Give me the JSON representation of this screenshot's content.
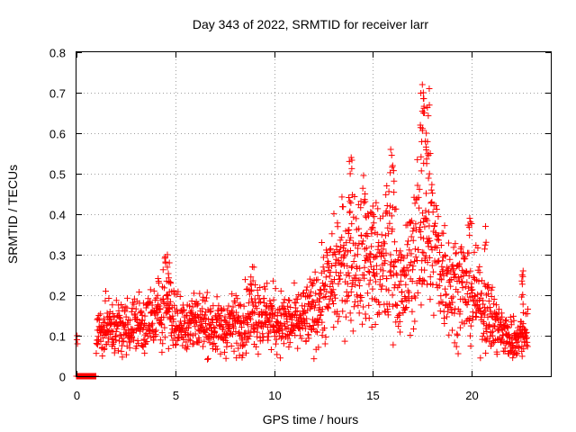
{
  "chart_data": {
    "type": "scatter",
    "title": "Day 343 of 2022, SRMTID for receiver larr",
    "xlabel": "GPS time / hours",
    "ylabel": "SRMTID / TECUs",
    "xlim": [
      0,
      24
    ],
    "ylim": [
      0,
      0.8
    ],
    "xticks": [
      0,
      5,
      10,
      15,
      20
    ],
    "yticks": [
      0,
      0.1,
      0.2,
      0.3,
      0.4,
      0.5,
      0.6,
      0.7,
      0.8
    ],
    "xtick_labels": [
      "0",
      "5",
      "10",
      "15",
      "20"
    ],
    "ytick_labels": [
      "0",
      "0.1",
      "0.2",
      "0.3",
      "0.4",
      "0.5",
      "0.6",
      "0.7",
      "0.8"
    ],
    "grid": true,
    "marker": "+",
    "color": "#ff0000",
    "series": [
      {
        "name": "SRMTID",
        "trend": [
          [
            0.0,
            0.0
          ],
          [
            0.05,
            0.09
          ],
          [
            0.1,
            0.0
          ],
          [
            0.5,
            0.0
          ],
          [
            1.0,
            0.0
          ],
          [
            1.0,
            0.11
          ],
          [
            1.5,
            0.12
          ],
          [
            2.0,
            0.12
          ],
          [
            2.5,
            0.12
          ],
          [
            3.0,
            0.13
          ],
          [
            3.5,
            0.13
          ],
          [
            4.0,
            0.14
          ],
          [
            4.5,
            0.2
          ],
          [
            5.0,
            0.13
          ],
          [
            5.5,
            0.13
          ],
          [
            6.0,
            0.14
          ],
          [
            6.5,
            0.13
          ],
          [
            7.0,
            0.12
          ],
          [
            7.5,
            0.12
          ],
          [
            8.0,
            0.13
          ],
          [
            8.5,
            0.14
          ],
          [
            9.0,
            0.17
          ],
          [
            9.5,
            0.15
          ],
          [
            10.0,
            0.14
          ],
          [
            10.5,
            0.13
          ],
          [
            11.0,
            0.13
          ],
          [
            11.5,
            0.14
          ],
          [
            12.0,
            0.16
          ],
          [
            12.5,
            0.2
          ],
          [
            13.0,
            0.24
          ],
          [
            13.5,
            0.28
          ],
          [
            14.0,
            0.3
          ],
          [
            14.5,
            0.3
          ],
          [
            15.0,
            0.28
          ],
          [
            15.5,
            0.26
          ],
          [
            16.0,
            0.3
          ],
          [
            16.5,
            0.2
          ],
          [
            17.0,
            0.3
          ],
          [
            17.5,
            0.35
          ],
          [
            18.0,
            0.33
          ],
          [
            18.5,
            0.27
          ],
          [
            19.0,
            0.22
          ],
          [
            19.5,
            0.23
          ],
          [
            20.0,
            0.2
          ],
          [
            20.5,
            0.18
          ],
          [
            21.0,
            0.14
          ],
          [
            21.5,
            0.11
          ],
          [
            22.0,
            0.09
          ],
          [
            22.5,
            0.1
          ],
          [
            22.8,
            0.12
          ]
        ],
        "peaks": [
          [
            4.6,
            0.3
          ],
          [
            4.7,
            0.28
          ],
          [
            8.9,
            0.27
          ],
          [
            13.9,
            0.54
          ],
          [
            13.85,
            0.5
          ],
          [
            14.6,
            0.45
          ],
          [
            15.0,
            0.42
          ],
          [
            15.9,
            0.56
          ],
          [
            16.0,
            0.52
          ],
          [
            15.7,
            0.47
          ],
          [
            17.5,
            0.72
          ],
          [
            17.55,
            0.7
          ],
          [
            17.85,
            0.71
          ],
          [
            17.6,
            0.65
          ],
          [
            17.4,
            0.62
          ],
          [
            17.7,
            0.6
          ],
          [
            17.9,
            0.55
          ],
          [
            17.65,
            0.58
          ],
          [
            19.9,
            0.39
          ],
          [
            20.7,
            0.37
          ],
          [
            22.6,
            0.26
          ],
          [
            22.55,
            0.25
          ]
        ]
      }
    ]
  }
}
